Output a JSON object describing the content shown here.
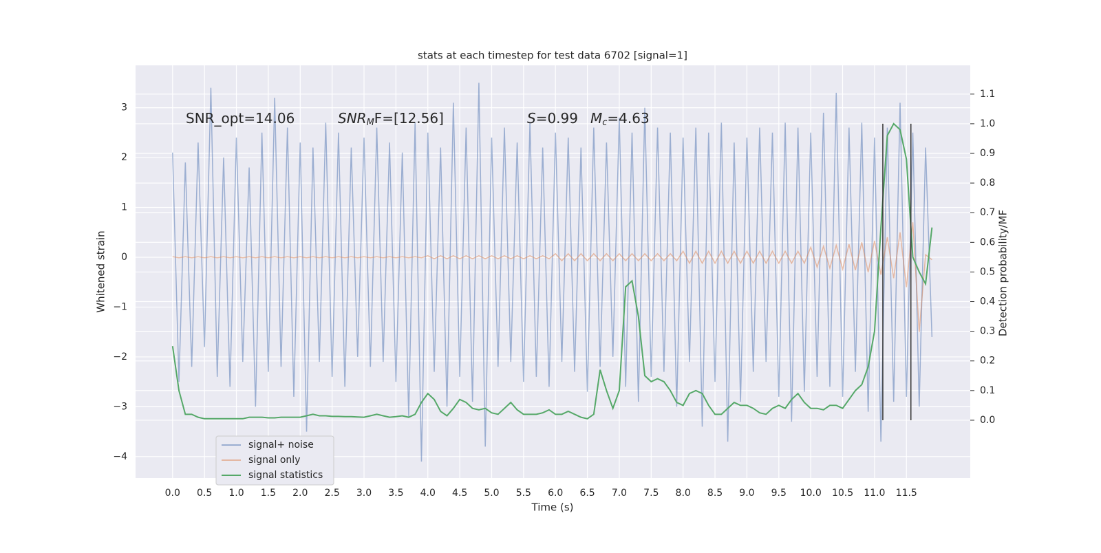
{
  "chart_data": {
    "type": "line",
    "title": "stats at each timestep for test data 6702 [signal=1]",
    "x_label": "Time (s)",
    "y_label": "Whitened strain",
    "y2_label": "Detection probability/MF",
    "annotations": [
      [
        "SNR_opt=14.06"
      ],
      [
        "SNR",
        "M",
        "F=[12.56]"
      ],
      [
        "S",
        "=0.99"
      ],
      [
        "M",
        "c",
        "=4.63"
      ]
    ],
    "x": [
      0.0,
      0.1,
      0.2,
      0.3,
      0.4,
      0.5,
      0.6,
      0.7,
      0.8,
      0.9,
      1.0,
      1.1,
      1.2,
      1.3,
      1.4,
      1.5,
      1.6,
      1.7,
      1.8,
      1.9,
      2.0,
      2.1,
      2.2,
      2.3,
      2.4,
      2.5,
      2.6,
      2.7,
      2.8,
      2.9,
      3.0,
      3.1,
      3.2,
      3.3,
      3.4,
      3.5,
      3.6,
      3.7,
      3.8,
      3.9,
      4.0,
      4.1,
      4.2,
      4.3,
      4.4,
      4.5,
      4.6,
      4.7,
      4.8,
      4.9,
      5.0,
      5.1,
      5.2,
      5.3,
      5.4,
      5.5,
      5.6,
      5.7,
      5.8,
      5.9,
      6.0,
      6.1,
      6.2,
      6.3,
      6.4,
      6.5,
      6.6,
      6.7,
      6.8,
      6.9,
      7.0,
      7.1,
      7.2,
      7.3,
      7.4,
      7.5,
      7.6,
      7.7,
      7.8,
      7.9,
      8.0,
      8.1,
      8.2,
      8.3,
      8.4,
      8.5,
      8.6,
      8.7,
      8.8,
      8.9,
      9.0,
      9.1,
      9.2,
      9.3,
      9.4,
      9.5,
      9.6,
      9.7,
      9.8,
      9.9,
      10.0,
      10.1,
      10.2,
      10.3,
      10.4,
      10.5,
      10.6,
      10.7,
      10.8,
      10.9,
      11.0,
      11.1,
      11.2,
      11.3,
      11.4,
      11.5,
      11.6,
      11.7,
      11.8,
      11.9
    ],
    "series": [
      {
        "name": "signal+ noise",
        "color": "#4c72b0",
        "opacity": 0.5,
        "values": [
          2.1,
          -2.5,
          1.9,
          -2.2,
          2.3,
          -1.8,
          3.4,
          -2.4,
          2.0,
          -2.6,
          2.4,
          -2.1,
          1.8,
          -3.0,
          2.5,
          -2.3,
          3.2,
          -2.2,
          2.6,
          -2.8,
          2.3,
          -3.5,
          2.2,
          -2.1,
          2.7,
          -2.4,
          2.5,
          -2.6,
          2.2,
          -2.0,
          2.4,
          -2.2,
          2.6,
          -2.1,
          2.3,
          -2.5,
          2.1,
          -3.2,
          2.7,
          -4.1,
          2.5,
          -2.3,
          2.2,
          -3.0,
          3.1,
          -2.4,
          2.6,
          -2.9,
          3.5,
          -3.8,
          2.4,
          -2.2,
          2.6,
          -2.1,
          2.3,
          -2.5,
          2.7,
          -2.4,
          2.2,
          -2.6,
          2.5,
          -2.1,
          2.4,
          -2.3,
          2.2,
          -2.7,
          2.6,
          -2.2,
          2.3,
          -2.0,
          2.8,
          -2.6,
          2.5,
          -2.9,
          3.0,
          -2.4,
          2.6,
          -2.3,
          2.5,
          -3.0,
          2.4,
          -2.1,
          2.6,
          -3.4,
          2.5,
          -2.5,
          2.7,
          -3.7,
          2.3,
          -2.9,
          2.4,
          -2.3,
          2.6,
          -2.1,
          2.5,
          -2.8,
          2.7,
          -3.3,
          2.6,
          -2.7,
          2.5,
          -2.4,
          2.9,
          -2.6,
          3.3,
          -2.8,
          2.6,
          -2.3,
          2.7,
          -3.1,
          2.4,
          -3.7,
          2.6,
          -2.9,
          3.1,
          -2.8,
          2.5,
          -3.0,
          2.2,
          -1.6
        ]
      },
      {
        "name": "signal only",
        "color": "#dd8452",
        "opacity": 0.5,
        "values": [
          0.01,
          -0.01,
          0.01,
          -0.01,
          0.01,
          -0.01,
          0.01,
          -0.01,
          0.01,
          -0.01,
          0.01,
          -0.01,
          0.01,
          -0.01,
          0.01,
          -0.01,
          0.01,
          -0.01,
          0.01,
          -0.01,
          0.01,
          -0.01,
          0.01,
          -0.01,
          0.01,
          -0.01,
          0.01,
          -0.01,
          0.01,
          -0.01,
          0.01,
          -0.01,
          0.01,
          -0.01,
          0.01,
          -0.01,
          0.01,
          -0.01,
          0.01,
          -0.01,
          0.03,
          -0.03,
          0.03,
          -0.03,
          0.03,
          -0.03,
          0.03,
          -0.03,
          0.03,
          -0.03,
          0.03,
          -0.03,
          0.03,
          -0.03,
          0.03,
          -0.03,
          0.03,
          -0.03,
          0.03,
          -0.03,
          0.07,
          -0.07,
          0.07,
          -0.07,
          0.07,
          -0.07,
          0.07,
          -0.07,
          0.07,
          -0.07,
          0.07,
          -0.07,
          0.07,
          -0.07,
          0.07,
          -0.07,
          0.07,
          -0.07,
          0.07,
          -0.07,
          0.12,
          -0.12,
          0.12,
          -0.12,
          0.12,
          -0.12,
          0.12,
          -0.12,
          0.12,
          -0.12,
          0.12,
          -0.12,
          0.12,
          -0.12,
          0.12,
          -0.12,
          0.12,
          -0.12,
          0.12,
          -0.12,
          0.2,
          -0.2,
          0.22,
          -0.22,
          0.24,
          -0.24,
          0.26,
          -0.26,
          0.3,
          -0.3,
          0.33,
          -0.35,
          0.4,
          -0.42,
          0.5,
          -0.6,
          0.7,
          -1.5,
          0.05,
          -0.05
        ]
      },
      {
        "name": "signal statistics",
        "color": "#55a868",
        "opacity": 1,
        "axis": "y2",
        "values": [
          0.25,
          0.1,
          0.02,
          0.02,
          0.01,
          0.005,
          0.005,
          0.005,
          0.005,
          0.005,
          0.005,
          0.005,
          0.01,
          0.01,
          0.01,
          0.008,
          0.008,
          0.01,
          0.01,
          0.01,
          0.01,
          0.015,
          0.02,
          0.015,
          0.015,
          0.013,
          0.013,
          0.012,
          0.012,
          0.011,
          0.01,
          0.015,
          0.02,
          0.015,
          0.01,
          0.012,
          0.015,
          0.01,
          0.02,
          0.06,
          0.09,
          0.07,
          0.03,
          0.015,
          0.04,
          0.07,
          0.06,
          0.04,
          0.035,
          0.04,
          0.025,
          0.02,
          0.04,
          0.06,
          0.035,
          0.02,
          0.02,
          0.02,
          0.025,
          0.035,
          0.02,
          0.02,
          0.03,
          0.02,
          0.01,
          0.005,
          0.02,
          0.17,
          0.1,
          0.04,
          0.1,
          0.45,
          0.47,
          0.35,
          0.15,
          0.13,
          0.14,
          0.13,
          0.1,
          0.06,
          0.05,
          0.09,
          0.1,
          0.09,
          0.05,
          0.02,
          0.02,
          0.04,
          0.06,
          0.05,
          0.05,
          0.04,
          0.025,
          0.02,
          0.04,
          0.05,
          0.04,
          0.07,
          0.09,
          0.06,
          0.04,
          0.04,
          0.035,
          0.05,
          0.05,
          0.04,
          0.07,
          0.1,
          0.12,
          0.18,
          0.3,
          0.65,
          0.96,
          1.0,
          0.98,
          0.88,
          0.55,
          0.5,
          0.46,
          0.65
        ]
      }
    ],
    "vlines": {
      "x": [
        11.13,
        11.57
      ],
      "y2": [
        0,
        1
      ],
      "color": "#333333"
    },
    "xlim": [
      -0.58,
      12.5
    ],
    "ylim": [
      -4.43,
      3.85
    ],
    "y2lim": [
      -0.195,
      1.197
    ],
    "xticks": [
      {
        "value": 0,
        "label": "0.0"
      },
      0.5,
      {
        "value": 1,
        "label": "1.0"
      },
      1.5,
      {
        "value": 2,
        "label": "2.0"
      },
      2.5,
      {
        "value": 3,
        "label": "3.0"
      },
      3.5,
      {
        "value": 4,
        "label": "4.0"
      },
      4.5,
      {
        "value": 5,
        "label": "5.0"
      },
      5.5,
      {
        "value": 6,
        "label": "6.0"
      },
      6.5,
      {
        "value": 7,
        "label": "7.0"
      },
      7.5,
      {
        "value": 8,
        "label": "8.0"
      },
      8.5,
      {
        "value": 9,
        "label": "9.0"
      },
      9.5,
      {
        "value": 10,
        "label": "10.0"
      },
      10.5,
      {
        "value": 11,
        "label": "11.0"
      },
      11.5
    ],
    "yticks": [
      {
        "value": -4,
        "label": "−4"
      },
      {
        "value": -3,
        "label": "−3"
      },
      {
        "value": -2,
        "label": "−2"
      },
      {
        "value": -1,
        "label": "−1"
      },
      0,
      1,
      2,
      3
    ],
    "y2ticks": [
      {
        "value": 0,
        "label": "0.0"
      },
      0.1,
      0.2,
      0.3,
      0.4,
      0.5,
      0.6,
      0.7,
      0.8,
      0.9,
      {
        "value": 1,
        "label": "1.0"
      },
      1.1
    ],
    "grid": true,
    "legend": "lower left"
  }
}
